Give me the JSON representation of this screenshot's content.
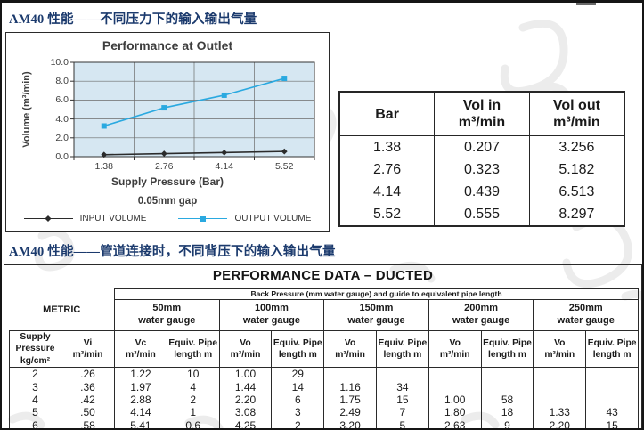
{
  "page": {
    "section1_title": "AM40 性能——不同压力下的输入输出气量",
    "section2_title": "AM40 性能——管道连接时，不同背压下的输入输出气量"
  },
  "chart_data": {
    "type": "line",
    "title": "Performance at Outlet",
    "x": [
      1.38,
      2.76,
      4.14,
      5.52
    ],
    "xtick_labels": [
      "1.38",
      "2.76",
      "4.14",
      "5.52"
    ],
    "series": [
      {
        "name": "INPUT VOLUME",
        "values": [
          0.207,
          0.323,
          0.439,
          0.555
        ],
        "color": "#2b2b2b",
        "marker": "diamond"
      },
      {
        "name": "OUTPUT VOLUME",
        "values": [
          3.256,
          5.182,
          6.513,
          8.297
        ],
        "color": "#2aa9e0",
        "marker": "square"
      }
    ],
    "xlabel": "Supply Pressure (Bar)",
    "ylabel": "Volume (m³/min)",
    "note": "0.05mm gap",
    "ylim": [
      0,
      10
    ],
    "yticks": [
      0,
      2,
      4,
      6,
      8,
      10
    ],
    "grid": true,
    "legend_position": "bottom",
    "plot_bg": "#d6e7f2"
  },
  "outlet_table": {
    "headers": [
      "Bar",
      "Vol in\nm³/min",
      "Vol out\nm³/min"
    ],
    "rows": [
      [
        "1.38",
        "0.207",
        "3.256"
      ],
      [
        "2.76",
        "0.323",
        "5.182"
      ],
      [
        "4.14",
        "0.439",
        "6.513"
      ],
      [
        "5.52",
        "0.555",
        "8.297"
      ]
    ]
  },
  "ducted": {
    "title": "PERFORMANCE DATA – DUCTED",
    "band_header": "Back Pressure (mm water gauge) and guide to equivalent pipe length",
    "metric_label": "METRIC",
    "left_headers": [
      "Supply Pressure\nkg/cm²",
      "Vi\nm³/min"
    ],
    "groups": [
      {
        "label": "50mm\nwater gauge",
        "columns": [
          "Vc\nm³/min",
          "Equiv. Pipe\nlength m"
        ]
      },
      {
        "label": "100mm\nwater gauge",
        "columns": [
          "Vo\nm³/min",
          "Equiv. Pipe\nlength m"
        ]
      },
      {
        "label": "150mm\nwater gauge",
        "columns": [
          "Vo\nm³/min",
          "Equiv. Pipe\nlength m"
        ]
      },
      {
        "label": "200mm\nwater gauge",
        "columns": [
          "Vo\nm³/min",
          "Equiv. Pipe\nlength m"
        ]
      },
      {
        "label": "250mm\nwater gauge",
        "columns": [
          "Vo\nm³/min",
          "Equiv. Pipe\nlength m"
        ]
      }
    ],
    "rows": [
      [
        "2",
        ".26",
        "1.22",
        "10",
        "1.00",
        "29",
        "",
        "",
        "",
        "",
        "",
        ""
      ],
      [
        "3",
        ".36",
        "1.97",
        "4",
        "1.44",
        "14",
        "1.16",
        "34",
        "",
        "",
        "",
        ""
      ],
      [
        "4",
        ".42",
        "2.88",
        "2",
        "2.20",
        "6",
        "1.75",
        "15",
        "1.00",
        "58",
        "",
        ""
      ],
      [
        "5",
        ".50",
        "4.14",
        "1",
        "3.08",
        "3",
        "2.49",
        "7",
        "1.80",
        "18",
        "1.33",
        "43"
      ],
      [
        "6",
        ".58",
        "5.41",
        "0.6",
        "4.25",
        "2",
        "3.20",
        "5",
        "2.63",
        "9",
        "2.20",
        "15"
      ]
    ]
  },
  "colors": {
    "section_title": "#1b3a6d",
    "plot_bg": "#d6e7f2",
    "grid_line": "#6b6b6b",
    "input_series": "#2b2b2b",
    "output_series": "#2aa9e0",
    "table_border": "#262626",
    "text": "#1a1a1a",
    "chart_text": "#3f3f3f",
    "watermark": "#ececec"
  }
}
